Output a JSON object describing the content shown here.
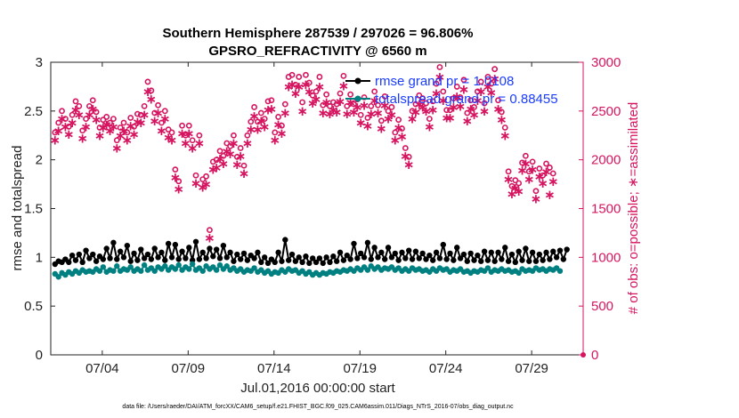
{
  "chart_data": {
    "type": "line",
    "title_line1": "Southern Hemisphere 287539 / 297026 = 96.806%",
    "title_line2": "GPSRO_REFRACTIVITY @ 6560 m",
    "xlabel": "Jul.01,2016 00:00:00 start",
    "ylabel_left": "rmse and totalspread",
    "ylabel_right": "# of obs: o=possible; ∗=assimilated",
    "footer": "data file: /Users/raeder/DAI/ATM_forcXX/CAM6_setup/f.e21.FHIST_BGC.f09_025.CAM6assim.011/Diags_NTrS_2016-07/obs_diag_output.nc",
    "x_tick_labels": [
      "07/04",
      "07/09",
      "07/14",
      "07/19",
      "07/24",
      "07/29"
    ],
    "x_tick_days": [
      4,
      9,
      14,
      19,
      24,
      29
    ],
    "xlim": [
      1,
      32
    ],
    "ylim_left": [
      0,
      3
    ],
    "y_ticks_left": [
      "0",
      "0.5",
      "1",
      "1.5",
      "2",
      "2.5",
      "3"
    ],
    "ylim_right": [
      0,
      3000
    ],
    "y_ticks_right": [
      "0",
      "500",
      "1000",
      "1500",
      "2000",
      "2500",
      "3000"
    ],
    "legend": [
      {
        "name": "rmse grand pr = 1.0108",
        "color": "#000000"
      },
      {
        "name": "totalspread grand pr = 0.88455",
        "color": "#008080"
      }
    ],
    "series": [
      {
        "name": "rmse",
        "color": "#000000",
        "axis": "left",
        "values": [
          0.93,
          0.96,
          0.95,
          0.98,
          0.95,
          1.02,
          0.97,
          1.03,
          0.95,
          1.07,
          0.99,
          1.03,
          0.96,
          1.01,
          0.98,
          1.09,
          0.99,
          1.15,
          0.98,
          1.06,
          1.0,
          1.12,
          0.96,
          1.04,
          0.97,
          1.08,
          0.99,
          1.03,
          0.98,
          1.09,
          1.0,
          1.05,
          0.97,
          1.14,
          1.0,
          1.13,
          0.98,
          1.06,
          0.99,
          1.1,
          0.97,
          1.16,
          0.98,
          1.05,
          0.99,
          1.09,
          1.01,
          1.08,
          0.99,
          1.12,
          1.0,
          1.05,
          0.96,
          1.03,
          0.98,
          1.04,
          0.97,
          1.02,
          0.99,
          1.05,
          0.95,
          1.0,
          0.94,
          0.98,
          0.95,
          1.05,
          0.96,
          1.18,
          0.97,
          1.03,
          0.96,
          1.0,
          0.95,
          1.01,
          0.94,
          0.99,
          0.95,
          0.99,
          0.94,
          1.0,
          0.95,
          1.01,
          0.96,
          1.05,
          0.97,
          1.02,
          0.98,
          1.14,
          0.99,
          1.04,
          1.0,
          1.15,
          0.98,
          1.1,
          1.0,
          1.05,
          0.98,
          1.1,
          1.0,
          1.04,
          0.97,
          1.05,
          0.99,
          1.07,
          0.98,
          1.06,
          0.99,
          1.04,
          0.98,
          1.02,
          0.97,
          1.05,
          0.99,
          1.13,
          0.98,
          1.04,
          0.97,
          1.1,
          0.99,
          1.03,
          0.96,
          1.04,
          0.97,
          1.02,
          0.96,
          1.06,
          0.97,
          1.05,
          0.96,
          1.05,
          0.98,
          1.1,
          0.96,
          1.03,
          0.95,
          1.06,
          0.97,
          1.09,
          0.96,
          1.05,
          0.96,
          1.03,
          0.97,
          1.05,
          0.98,
          1.06,
          1.0,
          1.07,
          0.98,
          1.08
        ]
      },
      {
        "name": "totalspread",
        "color": "#008080",
        "axis": "left",
        "values": [
          0.83,
          0.8,
          0.84,
          0.82,
          0.85,
          0.83,
          0.86,
          0.84,
          0.87,
          0.85,
          0.86,
          0.85,
          0.88,
          0.86,
          0.9,
          0.85,
          0.87,
          0.86,
          0.91,
          0.86,
          0.88,
          0.87,
          0.9,
          0.86,
          0.88,
          0.86,
          0.92,
          0.87,
          0.89,
          0.86,
          0.9,
          0.88,
          0.91,
          0.87,
          0.9,
          0.88,
          0.92,
          0.87,
          0.9,
          0.88,
          0.93,
          0.87,
          0.89,
          0.86,
          0.91,
          0.88,
          0.9,
          0.87,
          0.92,
          0.88,
          0.91,
          0.87,
          0.89,
          0.86,
          0.88,
          0.85,
          0.87,
          0.86,
          0.89,
          0.85,
          0.87,
          0.84,
          0.86,
          0.83,
          0.85,
          0.84,
          0.87,
          0.85,
          0.88,
          0.86,
          0.87,
          0.84,
          0.86,
          0.83,
          0.85,
          0.82,
          0.84,
          0.82,
          0.84,
          0.83,
          0.85,
          0.84,
          0.86,
          0.85,
          0.87,
          0.86,
          0.88,
          0.86,
          0.89,
          0.87,
          0.9,
          0.87,
          0.91,
          0.88,
          0.9,
          0.87,
          0.89,
          0.88,
          0.9,
          0.87,
          0.89,
          0.86,
          0.88,
          0.86,
          0.89,
          0.87,
          0.88,
          0.86,
          0.87,
          0.85,
          0.88,
          0.86,
          0.89,
          0.87,
          0.88,
          0.85,
          0.87,
          0.86,
          0.88,
          0.85,
          0.86,
          0.84,
          0.86,
          0.85,
          0.87,
          0.86,
          0.89,
          0.85,
          0.87,
          0.86,
          0.88,
          0.86,
          0.87,
          0.85,
          0.86,
          0.84,
          0.88,
          0.86,
          0.87,
          0.86,
          0.89,
          0.87,
          0.88,
          0.86,
          0.88,
          0.87,
          0.89,
          0.86
        ]
      },
      {
        "name": "possible",
        "color": "#d6145f",
        "axis": "right",
        "values": [
          2280,
          2380,
          2500,
          2420,
          2340,
          2460,
          2600,
          2550,
          2300,
          2420,
          2550,
          2610,
          2490,
          2330,
          2410,
          2440,
          2380,
          2420,
          2200,
          2330,
          2380,
          2280,
          2430,
          2340,
          2470,
          2460,
          2550,
          2800,
          2710,
          2480,
          2560,
          2380,
          2500,
          2310,
          2280,
          1900,
          1780,
          2350,
          2250,
          2350,
          2200,
          1840,
          2250,
          1800,
          1830,
          1280,
          1980,
          2000,
          2090,
          2040,
          2170,
          2140,
          2250,
          2030,
          2120,
          1940,
          2250,
          2390,
          2540,
          2390,
          2480,
          2420,
          2600,
          2610,
          2280,
          2440,
          2350,
          2570,
          2850,
          2870,
          2770,
          2850,
          2590,
          2870,
          2790,
          2660,
          2700,
          2850,
          2560,
          2670,
          2550,
          2590,
          2570,
          2680,
          2860,
          2550,
          2670,
          2570,
          2620,
          2460,
          2640,
          2430,
          2550,
          2700,
          2560,
          2400,
          2650,
          2500,
          2540,
          2280,
          2410,
          2320,
          2120,
          2030,
          2500,
          2570,
          2660,
          2630,
          2580,
          2420,
          2600,
          2780,
          2950,
          2700,
          2510,
          2510,
          2630,
          2750,
          2640,
          2820,
          2480,
          2610,
          2540,
          2700,
          2800,
          2580,
          2850,
          2780,
          2930,
          2610,
          2490,
          2330,
          1880,
          1730,
          1790,
          1760,
          1970,
          2040,
          1880,
          1980,
          1680,
          1910,
          1840,
          1960,
          1920,
          1860
        ]
      },
      {
        "name": "assimilated",
        "color": "#d6145f",
        "axis": "right",
        "values": [
          2200,
          2300,
          2420,
          2340,
          2260,
          2380,
          2510,
          2460,
          2220,
          2340,
          2460,
          2520,
          2410,
          2250,
          2330,
          2360,
          2300,
          2340,
          2120,
          2250,
          2300,
          2200,
          2350,
          2260,
          2390,
          2380,
          2460,
          2700,
          2620,
          2400,
          2480,
          2300,
          2420,
          2230,
          2200,
          1820,
          1700,
          2270,
          2170,
          2270,
          2120,
          1760,
          2170,
          1720,
          1750,
          1200,
          1900,
          1920,
          2010,
          1960,
          2090,
          2060,
          2170,
          1950,
          2040,
          1860,
          2170,
          2310,
          2450,
          2310,
          2400,
          2340,
          2510,
          2520,
          2200,
          2360,
          2270,
          2480,
          2750,
          2770,
          2680,
          2750,
          2500,
          2770,
          2700,
          2580,
          2620,
          2750,
          2480,
          2590,
          2470,
          2510,
          2490,
          2600,
          2760,
          2470,
          2590,
          2490,
          2540,
          2380,
          2560,
          2350,
          2470,
          2610,
          2480,
          2320,
          2560,
          2420,
          2460,
          2200,
          2330,
          2240,
          2040,
          1950,
          2420,
          2490,
          2570,
          2540,
          2500,
          2340,
          2510,
          2680,
          2850,
          2610,
          2430,
          2430,
          2540,
          2650,
          2550,
          2720,
          2400,
          2520,
          2460,
          2610,
          2700,
          2500,
          2750,
          2690,
          2830,
          2520,
          2410,
          2250,
          1800,
          1650,
          1710,
          1680,
          1890,
          1960,
          1800,
          1900,
          1600,
          1830,
          1760,
          1880,
          1640,
          1780
        ]
      }
    ]
  }
}
